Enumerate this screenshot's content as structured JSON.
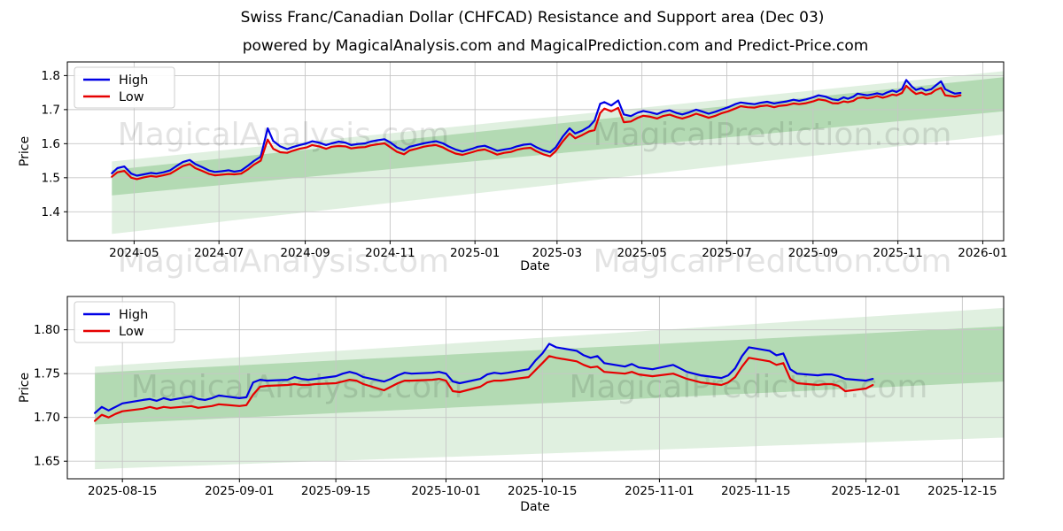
{
  "header": {
    "title": "Swiss Franc/Canadian Dollar (CHFCAD) Resistance and Support area (Dec 03)",
    "subtitle": "powered by MagicalAnalysis.com and MagicalPrediction.com and Predict-Price.com"
  },
  "watermark": {
    "left_text": "MagicalAnalysis.com",
    "right_text": "MagicalPrediction.com",
    "color": "#000000",
    "opacity": 0.11
  },
  "colors": {
    "high_line": "#0000e6",
    "low_line": "#e60000",
    "band_green": "#008000",
    "grid": "#c6c6c6",
    "spine": "#000000",
    "legend_border": "#cccccc"
  },
  "chart_data": [
    {
      "type": "line",
      "ylabel": "Price",
      "xlabel": "Date",
      "grid": true,
      "legend": {
        "position": "upper-left",
        "entries": [
          "High",
          "Low"
        ]
      },
      "xlim": [
        "2024-03-14",
        "2026-01-16"
      ],
      "ylim": [
        1.315,
        1.84
      ],
      "xticks": [
        {
          "date": "2024-05-01",
          "label": "2024-05"
        },
        {
          "date": "2024-07-01",
          "label": "2024-07"
        },
        {
          "date": "2024-09-01",
          "label": "2024-09"
        },
        {
          "date": "2024-11-01",
          "label": "2024-11"
        },
        {
          "date": "2025-01-01",
          "label": "2025-01"
        },
        {
          "date": "2025-03-01",
          "label": "2025-03"
        },
        {
          "date": "2025-05-01",
          "label": "2025-05"
        },
        {
          "date": "2025-07-01",
          "label": "2025-07"
        },
        {
          "date": "2025-09-01",
          "label": "2025-09"
        },
        {
          "date": "2025-11-01",
          "label": "2025-11"
        },
        {
          "date": "2026-01-01",
          "label": "2026-01"
        }
      ],
      "yticks": [
        {
          "value": 1.4,
          "label": "1.4"
        },
        {
          "value": 1.5,
          "label": "1.5"
        },
        {
          "value": 1.6,
          "label": "1.6"
        },
        {
          "value": 1.7,
          "label": "1.7"
        },
        {
          "value": 1.8,
          "label": "1.8"
        }
      ],
      "bands": [
        {
          "name": "support-area-outer",
          "x": [
            "2024-04-15",
            "2026-01-16"
          ],
          "upper": [
            1.548,
            1.813
          ],
          "lower": [
            1.335,
            1.627
          ],
          "opacity": 0.12
        },
        {
          "name": "resistance-area-inner",
          "x": [
            "2024-04-15",
            "2026-01-16"
          ],
          "upper": [
            1.523,
            1.795
          ],
          "lower": [
            1.448,
            1.695
          ],
          "opacity": 0.2
        }
      ],
      "x": [
        "2024-04-15",
        "2024-04-19",
        "2024-04-24",
        "2024-04-29",
        "2024-05-03",
        "2024-05-08",
        "2024-05-13",
        "2024-05-17",
        "2024-05-22",
        "2024-05-27",
        "2024-05-31",
        "2024-06-05",
        "2024-06-10",
        "2024-06-14",
        "2024-06-19",
        "2024-06-24",
        "2024-06-28",
        "2024-07-03",
        "2024-07-08",
        "2024-07-12",
        "2024-07-17",
        "2024-07-22",
        "2024-07-26",
        "2024-07-31",
        "2024-08-05",
        "2024-08-09",
        "2024-08-14",
        "2024-08-19",
        "2024-08-23",
        "2024-08-28",
        "2024-09-02",
        "2024-09-06",
        "2024-09-11",
        "2024-09-16",
        "2024-09-20",
        "2024-09-25",
        "2024-09-30",
        "2024-10-04",
        "2024-10-09",
        "2024-10-14",
        "2024-10-18",
        "2024-10-23",
        "2024-10-28",
        "2024-11-01",
        "2024-11-06",
        "2024-11-11",
        "2024-11-15",
        "2024-11-20",
        "2024-11-25",
        "2024-11-29",
        "2024-12-04",
        "2024-12-09",
        "2024-12-13",
        "2024-12-18",
        "2024-12-23",
        "2024-12-30",
        "2025-01-03",
        "2025-01-08",
        "2025-01-13",
        "2025-01-17",
        "2025-01-22",
        "2025-01-27",
        "2025-01-31",
        "2025-02-05",
        "2025-02-10",
        "2025-02-14",
        "2025-02-19",
        "2025-02-24",
        "2025-02-28",
        "2025-03-05",
        "2025-03-10",
        "2025-03-14",
        "2025-03-19",
        "2025-03-24",
        "2025-03-28",
        "2025-04-01",
        "2025-04-04",
        "2025-04-09",
        "2025-04-14",
        "2025-04-18",
        "2025-04-23",
        "2025-04-28",
        "2025-05-02",
        "2025-05-07",
        "2025-05-12",
        "2025-05-16",
        "2025-05-21",
        "2025-05-26",
        "2025-05-30",
        "2025-06-04",
        "2025-06-09",
        "2025-06-13",
        "2025-06-18",
        "2025-06-23",
        "2025-06-27",
        "2025-07-02",
        "2025-07-07",
        "2025-07-11",
        "2025-07-16",
        "2025-07-21",
        "2025-07-25",
        "2025-07-30",
        "2025-08-04",
        "2025-08-08",
        "2025-08-13",
        "2025-08-18",
        "2025-08-22",
        "2025-08-27",
        "2025-09-01",
        "2025-09-05",
        "2025-09-10",
        "2025-09-15",
        "2025-09-19",
        "2025-09-23",
        "2025-09-26",
        "2025-09-30",
        "2025-10-03",
        "2025-10-07",
        "2025-10-10",
        "2025-10-14",
        "2025-10-17",
        "2025-10-21",
        "2025-10-24",
        "2025-10-28",
        "2025-10-31",
        "2025-11-04",
        "2025-11-07",
        "2025-11-11",
        "2025-11-14",
        "2025-11-18",
        "2025-11-21",
        "2025-11-25",
        "2025-11-28",
        "2025-12-02",
        "2025-12-05",
        "2025-12-09",
        "2025-12-12",
        "2025-12-16"
      ],
      "series": [
        {
          "name": "High",
          "color": "#0000e6",
          "values": [
            1.513,
            1.528,
            1.533,
            1.512,
            1.506,
            1.51,
            1.514,
            1.512,
            1.516,
            1.522,
            1.533,
            1.546,
            1.552,
            1.54,
            1.531,
            1.521,
            1.517,
            1.519,
            1.522,
            1.518,
            1.521,
            1.536,
            1.549,
            1.562,
            1.645,
            1.608,
            1.592,
            1.584,
            1.59,
            1.596,
            1.601,
            1.607,
            1.603,
            1.596,
            1.601,
            1.606,
            1.603,
            1.596,
            1.599,
            1.601,
            1.606,
            1.61,
            1.613,
            1.604,
            1.589,
            1.581,
            1.591,
            1.596,
            1.601,
            1.604,
            1.607,
            1.601,
            1.592,
            1.583,
            1.577,
            1.585,
            1.591,
            1.594,
            1.586,
            1.579,
            1.583,
            1.586,
            1.592,
            1.597,
            1.599,
            1.59,
            1.581,
            1.575,
            1.589,
            1.62,
            1.645,
            1.63,
            1.638,
            1.65,
            1.668,
            1.717,
            1.722,
            1.712,
            1.727,
            1.686,
            1.681,
            1.691,
            1.696,
            1.692,
            1.687,
            1.694,
            1.698,
            1.69,
            1.686,
            1.692,
            1.7,
            1.695,
            1.688,
            1.694,
            1.7,
            1.707,
            1.716,
            1.721,
            1.718,
            1.716,
            1.72,
            1.723,
            1.718,
            1.721,
            1.724,
            1.729,
            1.726,
            1.73,
            1.736,
            1.742,
            1.738,
            1.73,
            1.728,
            1.736,
            1.732,
            1.738,
            1.747,
            1.744,
            1.742,
            1.745,
            1.748,
            1.744,
            1.75,
            1.756,
            1.752,
            1.761,
            1.787,
            1.768,
            1.758,
            1.763,
            1.756,
            1.76,
            1.77,
            1.783,
            1.76,
            1.752,
            1.747,
            1.749
          ]
        },
        {
          "name": "Low",
          "color": "#e60000",
          "values": [
            1.503,
            1.516,
            1.52,
            1.5,
            1.496,
            1.501,
            1.505,
            1.503,
            1.507,
            1.512,
            1.522,
            1.534,
            1.54,
            1.528,
            1.52,
            1.511,
            1.507,
            1.509,
            1.511,
            1.51,
            1.512,
            1.525,
            1.538,
            1.55,
            1.612,
            1.585,
            1.575,
            1.573,
            1.579,
            1.585,
            1.589,
            1.596,
            1.592,
            1.585,
            1.591,
            1.593,
            1.592,
            1.586,
            1.589,
            1.59,
            1.595,
            1.598,
            1.601,
            1.59,
            1.576,
            1.569,
            1.58,
            1.585,
            1.591,
            1.594,
            1.596,
            1.589,
            1.58,
            1.571,
            1.567,
            1.575,
            1.58,
            1.583,
            1.575,
            1.568,
            1.573,
            1.576,
            1.582,
            1.586,
            1.588,
            1.578,
            1.569,
            1.563,
            1.578,
            1.606,
            1.63,
            1.616,
            1.625,
            1.636,
            1.64,
            1.69,
            1.703,
            1.695,
            1.705,
            1.663,
            1.665,
            1.676,
            1.682,
            1.679,
            1.674,
            1.681,
            1.685,
            1.678,
            1.674,
            1.68,
            1.688,
            1.683,
            1.676,
            1.682,
            1.689,
            1.695,
            1.703,
            1.71,
            1.707,
            1.706,
            1.71,
            1.712,
            1.707,
            1.711,
            1.713,
            1.718,
            1.716,
            1.719,
            1.724,
            1.73,
            1.727,
            1.719,
            1.718,
            1.724,
            1.722,
            1.726,
            1.734,
            1.736,
            1.733,
            1.736,
            1.74,
            1.735,
            1.738,
            1.744,
            1.742,
            1.749,
            1.77,
            1.755,
            1.746,
            1.75,
            1.744,
            1.748,
            1.757,
            1.764,
            1.742,
            1.74,
            1.738,
            1.742
          ]
        }
      ]
    },
    {
      "type": "line",
      "ylabel": "Price",
      "xlabel": "Date",
      "grid": true,
      "legend": {
        "position": "upper-left",
        "entries": [
          "High",
          "Low"
        ]
      },
      "xlim": [
        "2025-08-07",
        "2025-12-21"
      ],
      "ylim": [
        1.63,
        1.838
      ],
      "xticks": [
        {
          "date": "2025-08-15",
          "label": "2025-08-15"
        },
        {
          "date": "2025-09-01",
          "label": "2025-09-01"
        },
        {
          "date": "2025-09-15",
          "label": "2025-09-15"
        },
        {
          "date": "2025-10-01",
          "label": "2025-10-01"
        },
        {
          "date": "2025-10-15",
          "label": "2025-10-15"
        },
        {
          "date": "2025-11-01",
          "label": "2025-11-01"
        },
        {
          "date": "2025-11-15",
          "label": "2025-11-15"
        },
        {
          "date": "2025-12-01",
          "label": "2025-12-01"
        },
        {
          "date": "2025-12-15",
          "label": "2025-12-15"
        }
      ],
      "yticks": [
        {
          "value": 1.65,
          "label": "1.65"
        },
        {
          "value": 1.7,
          "label": "1.70"
        },
        {
          "value": 1.75,
          "label": "1.75"
        },
        {
          "value": 1.8,
          "label": "1.80"
        }
      ],
      "bands": [
        {
          "name": "support-area-outer",
          "x": [
            "2025-08-11",
            "2025-12-21"
          ],
          "upper": [
            1.758,
            1.825
          ],
          "lower": [
            1.641,
            1.677
          ],
          "opacity": 0.12
        },
        {
          "name": "resistance-area-inner",
          "x": [
            "2025-08-11",
            "2025-12-21"
          ],
          "upper": [
            1.751,
            1.804
          ],
          "lower": [
            1.692,
            1.741
          ],
          "opacity": 0.2
        }
      ],
      "x": [
        "2025-08-11",
        "2025-08-12",
        "2025-08-13",
        "2025-08-14",
        "2025-08-15",
        "2025-08-18",
        "2025-08-19",
        "2025-08-20",
        "2025-08-21",
        "2025-08-22",
        "2025-08-25",
        "2025-08-26",
        "2025-08-27",
        "2025-08-28",
        "2025-08-29",
        "2025-09-01",
        "2025-09-02",
        "2025-09-03",
        "2025-09-04",
        "2025-09-05",
        "2025-09-08",
        "2025-09-09",
        "2025-09-10",
        "2025-09-11",
        "2025-09-12",
        "2025-09-15",
        "2025-09-16",
        "2025-09-17",
        "2025-09-18",
        "2025-09-19",
        "2025-09-22",
        "2025-09-23",
        "2025-09-24",
        "2025-09-25",
        "2025-09-26",
        "2025-09-29",
        "2025-09-30",
        "2025-10-01",
        "2025-10-02",
        "2025-10-03",
        "2025-10-06",
        "2025-10-07",
        "2025-10-08",
        "2025-10-09",
        "2025-10-10",
        "2025-10-13",
        "2025-10-14",
        "2025-10-15",
        "2025-10-16",
        "2025-10-17",
        "2025-10-20",
        "2025-10-21",
        "2025-10-22",
        "2025-10-23",
        "2025-10-24",
        "2025-10-27",
        "2025-10-28",
        "2025-10-29",
        "2025-10-30",
        "2025-10-31",
        "2025-11-03",
        "2025-11-04",
        "2025-11-05",
        "2025-11-06",
        "2025-11-07",
        "2025-11-10",
        "2025-11-11",
        "2025-11-12",
        "2025-11-13",
        "2025-11-14",
        "2025-11-17",
        "2025-11-18",
        "2025-11-19",
        "2025-11-20",
        "2025-11-21",
        "2025-11-24",
        "2025-11-25",
        "2025-11-26",
        "2025-11-27",
        "2025-11-28",
        "2025-12-01",
        "2025-12-02"
      ],
      "series": [
        {
          "name": "High",
          "color": "#0000e6",
          "values": [
            1.705,
            1.712,
            1.708,
            1.712,
            1.716,
            1.72,
            1.721,
            1.719,
            1.722,
            1.72,
            1.724,
            1.721,
            1.72,
            1.722,
            1.725,
            1.722,
            1.723,
            1.74,
            1.743,
            1.742,
            1.743,
            1.746,
            1.744,
            1.743,
            1.744,
            1.747,
            1.75,
            1.752,
            1.75,
            1.746,
            1.741,
            1.744,
            1.748,
            1.751,
            1.75,
            1.751,
            1.752,
            1.75,
            1.741,
            1.739,
            1.744,
            1.749,
            1.751,
            1.75,
            1.751,
            1.755,
            1.765,
            1.773,
            1.784,
            1.78,
            1.776,
            1.771,
            1.768,
            1.77,
            1.762,
            1.758,
            1.761,
            1.757,
            1.756,
            1.755,
            1.76,
            1.756,
            1.752,
            1.75,
            1.748,
            1.745,
            1.748,
            1.756,
            1.77,
            1.78,
            1.776,
            1.771,
            1.773,
            1.755,
            1.75,
            1.748,
            1.749,
            1.749,
            1.747,
            1.744,
            1.742,
            1.744
          ]
        },
        {
          "name": "Low",
          "color": "#e60000",
          "values": [
            1.696,
            1.703,
            1.7,
            1.704,
            1.707,
            1.71,
            1.712,
            1.71,
            1.712,
            1.711,
            1.713,
            1.711,
            1.712,
            1.713,
            1.715,
            1.713,
            1.714,
            1.726,
            1.735,
            1.736,
            1.737,
            1.738,
            1.737,
            1.737,
            1.738,
            1.739,
            1.741,
            1.743,
            1.742,
            1.738,
            1.731,
            1.735,
            1.739,
            1.742,
            1.742,
            1.743,
            1.744,
            1.742,
            1.73,
            1.729,
            1.735,
            1.74,
            1.742,
            1.742,
            1.743,
            1.746,
            1.754,
            1.762,
            1.77,
            1.768,
            1.764,
            1.76,
            1.757,
            1.758,
            1.752,
            1.75,
            1.752,
            1.749,
            1.748,
            1.747,
            1.75,
            1.747,
            1.744,
            1.742,
            1.74,
            1.737,
            1.74,
            1.746,
            1.758,
            1.768,
            1.764,
            1.76,
            1.762,
            1.744,
            1.739,
            1.737,
            1.738,
            1.738,
            1.736,
            1.73,
            1.733,
            1.737
          ]
        }
      ]
    }
  ]
}
